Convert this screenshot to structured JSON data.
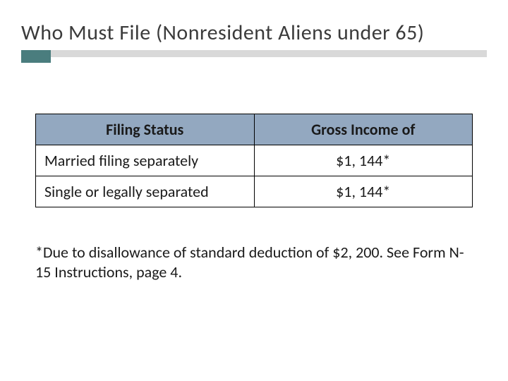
{
  "title": "Who Must File (Nonresident Aliens under 65)",
  "colors": {
    "accent": "#4a7d7e",
    "underline_bar": "#d9d9d9",
    "header_bg": "#93a8c0",
    "text": "#1a1a1a",
    "title_text": "#3b3b3b",
    "border": "#000000",
    "background": "#ffffff"
  },
  "typography": {
    "title_fontsize": 30,
    "table_fontsize": 22,
    "footnote_fontsize": 22
  },
  "table": {
    "type": "table",
    "columns": [
      "Filing Status",
      "Gross Income of"
    ],
    "column_alignment": [
      "left",
      "center"
    ],
    "column_widths": [
      "50%",
      "50%"
    ],
    "rows": [
      [
        "Married filing separately",
        "$1, 144*"
      ],
      [
        "Single or legally separated",
        "$1, 144*"
      ]
    ]
  },
  "footnote": "*Due to disallowance of standard deduction of $2, 200. See Form N-15 Instructions, page 4."
}
